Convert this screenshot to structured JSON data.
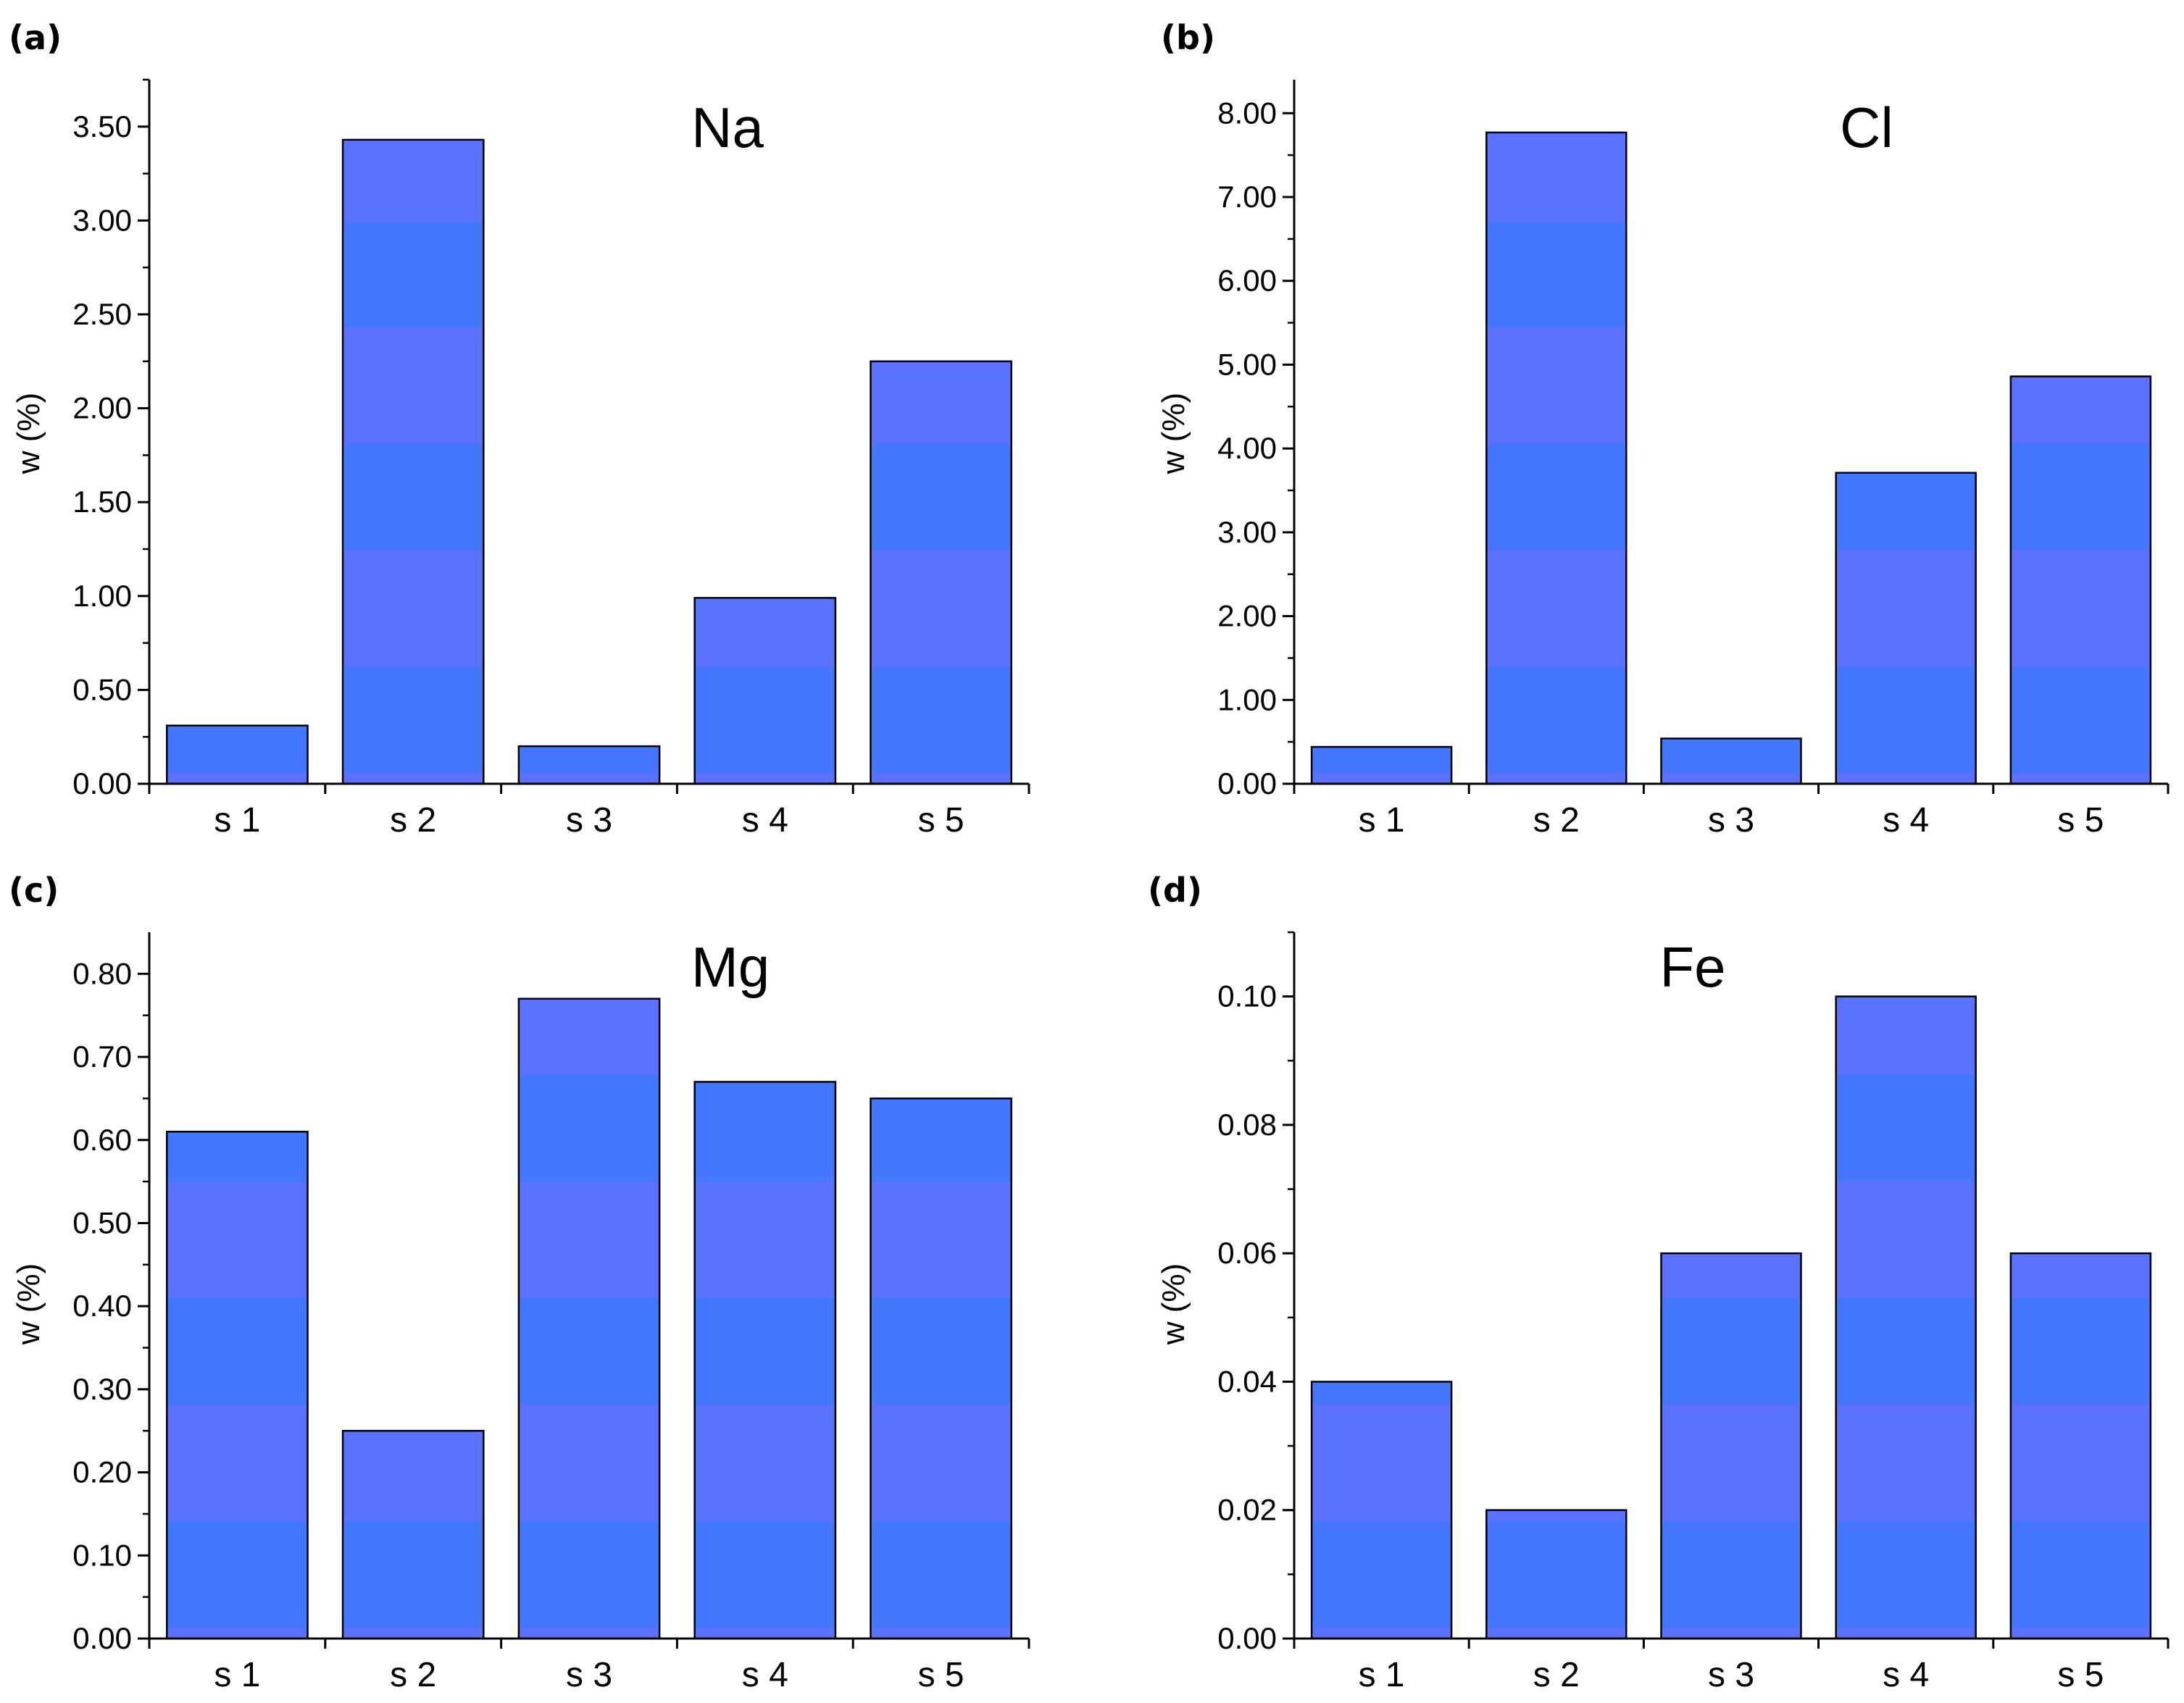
{
  "figure": {
    "bar_color": "#5a72ff",
    "band_color": "#3f78ff",
    "axis_color": "#000000"
  },
  "chart_data": [
    {
      "panel": "(a)",
      "type": "bar",
      "title": "Na",
      "ylabel": "w (%)",
      "categories": [
        "s 1",
        "s 2",
        "s 3",
        "s 4",
        "s 5"
      ],
      "values": [
        0.31,
        3.43,
        0.2,
        0.99,
        2.25
      ],
      "ylim": [
        0,
        3.75
      ],
      "yticks": [
        "0.00",
        "0.50",
        "1.00",
        "1.50",
        "2.00",
        "2.50",
        "3.00",
        "3.50"
      ],
      "ytick_values": [
        0,
        0.5,
        1.0,
        1.5,
        2.0,
        2.5,
        3.0,
        3.5
      ]
    },
    {
      "panel": "(b)",
      "type": "bar",
      "title": "Cl",
      "ylabel": "w (%)",
      "categories": [
        "s 1",
        "s 2",
        "s 3",
        "s 4",
        "s 5"
      ],
      "values": [
        0.44,
        7.77,
        0.54,
        3.71,
        4.86
      ],
      "ylim": [
        0,
        8.4
      ],
      "yticks": [
        "0.00",
        "1.00",
        "2.00",
        "3.00",
        "4.00",
        "5.00",
        "6.00",
        "7.00",
        "8.00"
      ],
      "ytick_values": [
        0,
        1,
        2,
        3,
        4,
        5,
        6,
        7,
        8
      ]
    },
    {
      "panel": "(c)",
      "type": "bar",
      "title": "Mg",
      "ylabel": "w (%)",
      "categories": [
        "s 1",
        "s 2",
        "s 3",
        "s 4",
        "s 5"
      ],
      "values": [
        0.61,
        0.25,
        0.77,
        0.67,
        0.65
      ],
      "ylim": [
        0,
        0.85
      ],
      "yticks": [
        "0.00",
        "0.10",
        "0.20",
        "0.30",
        "0.40",
        "0.50",
        "0.60",
        "0.70",
        "0.80"
      ],
      "ytick_values": [
        0,
        0.1,
        0.2,
        0.3,
        0.4,
        0.5,
        0.6,
        0.7,
        0.8
      ]
    },
    {
      "panel": "(d)",
      "type": "bar",
      "title": "Fe",
      "ylabel": "w (%)",
      "categories": [
        "s 1",
        "s 2",
        "s 3",
        "s 4",
        "s 5"
      ],
      "values": [
        0.04,
        0.02,
        0.06,
        0.1,
        0.06
      ],
      "ylim": [
        0,
        0.11
      ],
      "yticks": [
        "0.00",
        "0.02",
        "0.04",
        "0.06",
        "0.08",
        "0.10"
      ],
      "ytick_values": [
        0,
        0.02,
        0.04,
        0.06,
        0.08,
        0.1
      ]
    }
  ]
}
